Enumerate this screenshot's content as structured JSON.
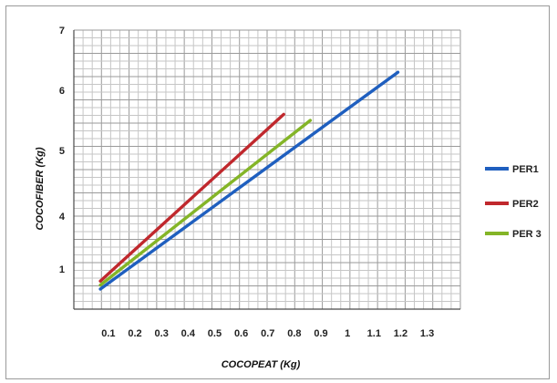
{
  "chart_data": {
    "type": "line",
    "xlabel": "COCOPEAT (Kg)",
    "ylabel": "COCOFIBER (Kg)",
    "x_ticks": [
      "0.1",
      "0.2",
      "0.3",
      "0.4",
      "0.5",
      "0.6",
      "0.7",
      "0.8",
      "0.9",
      "1",
      "1.1",
      "1.2",
      "1.3"
    ],
    "y_ticks": [
      "1",
      "4",
      "5",
      "6",
      "7"
    ],
    "grid": true,
    "legend_position": "right",
    "series": [
      {
        "name": "PER1",
        "color": "#1f5fbf",
        "points": [
          [
            0.07,
            0.5
          ],
          [
            1.19,
            6.3
          ]
        ]
      },
      {
        "name": "PER2",
        "color": "#c0282d",
        "points": [
          [
            0.07,
            0.7
          ],
          [
            0.76,
            5.6
          ]
        ]
      },
      {
        "name": "PER 3",
        "color": "#84b527",
        "points": [
          [
            0.07,
            0.6
          ],
          [
            0.86,
            5.5
          ]
        ]
      }
    ]
  }
}
